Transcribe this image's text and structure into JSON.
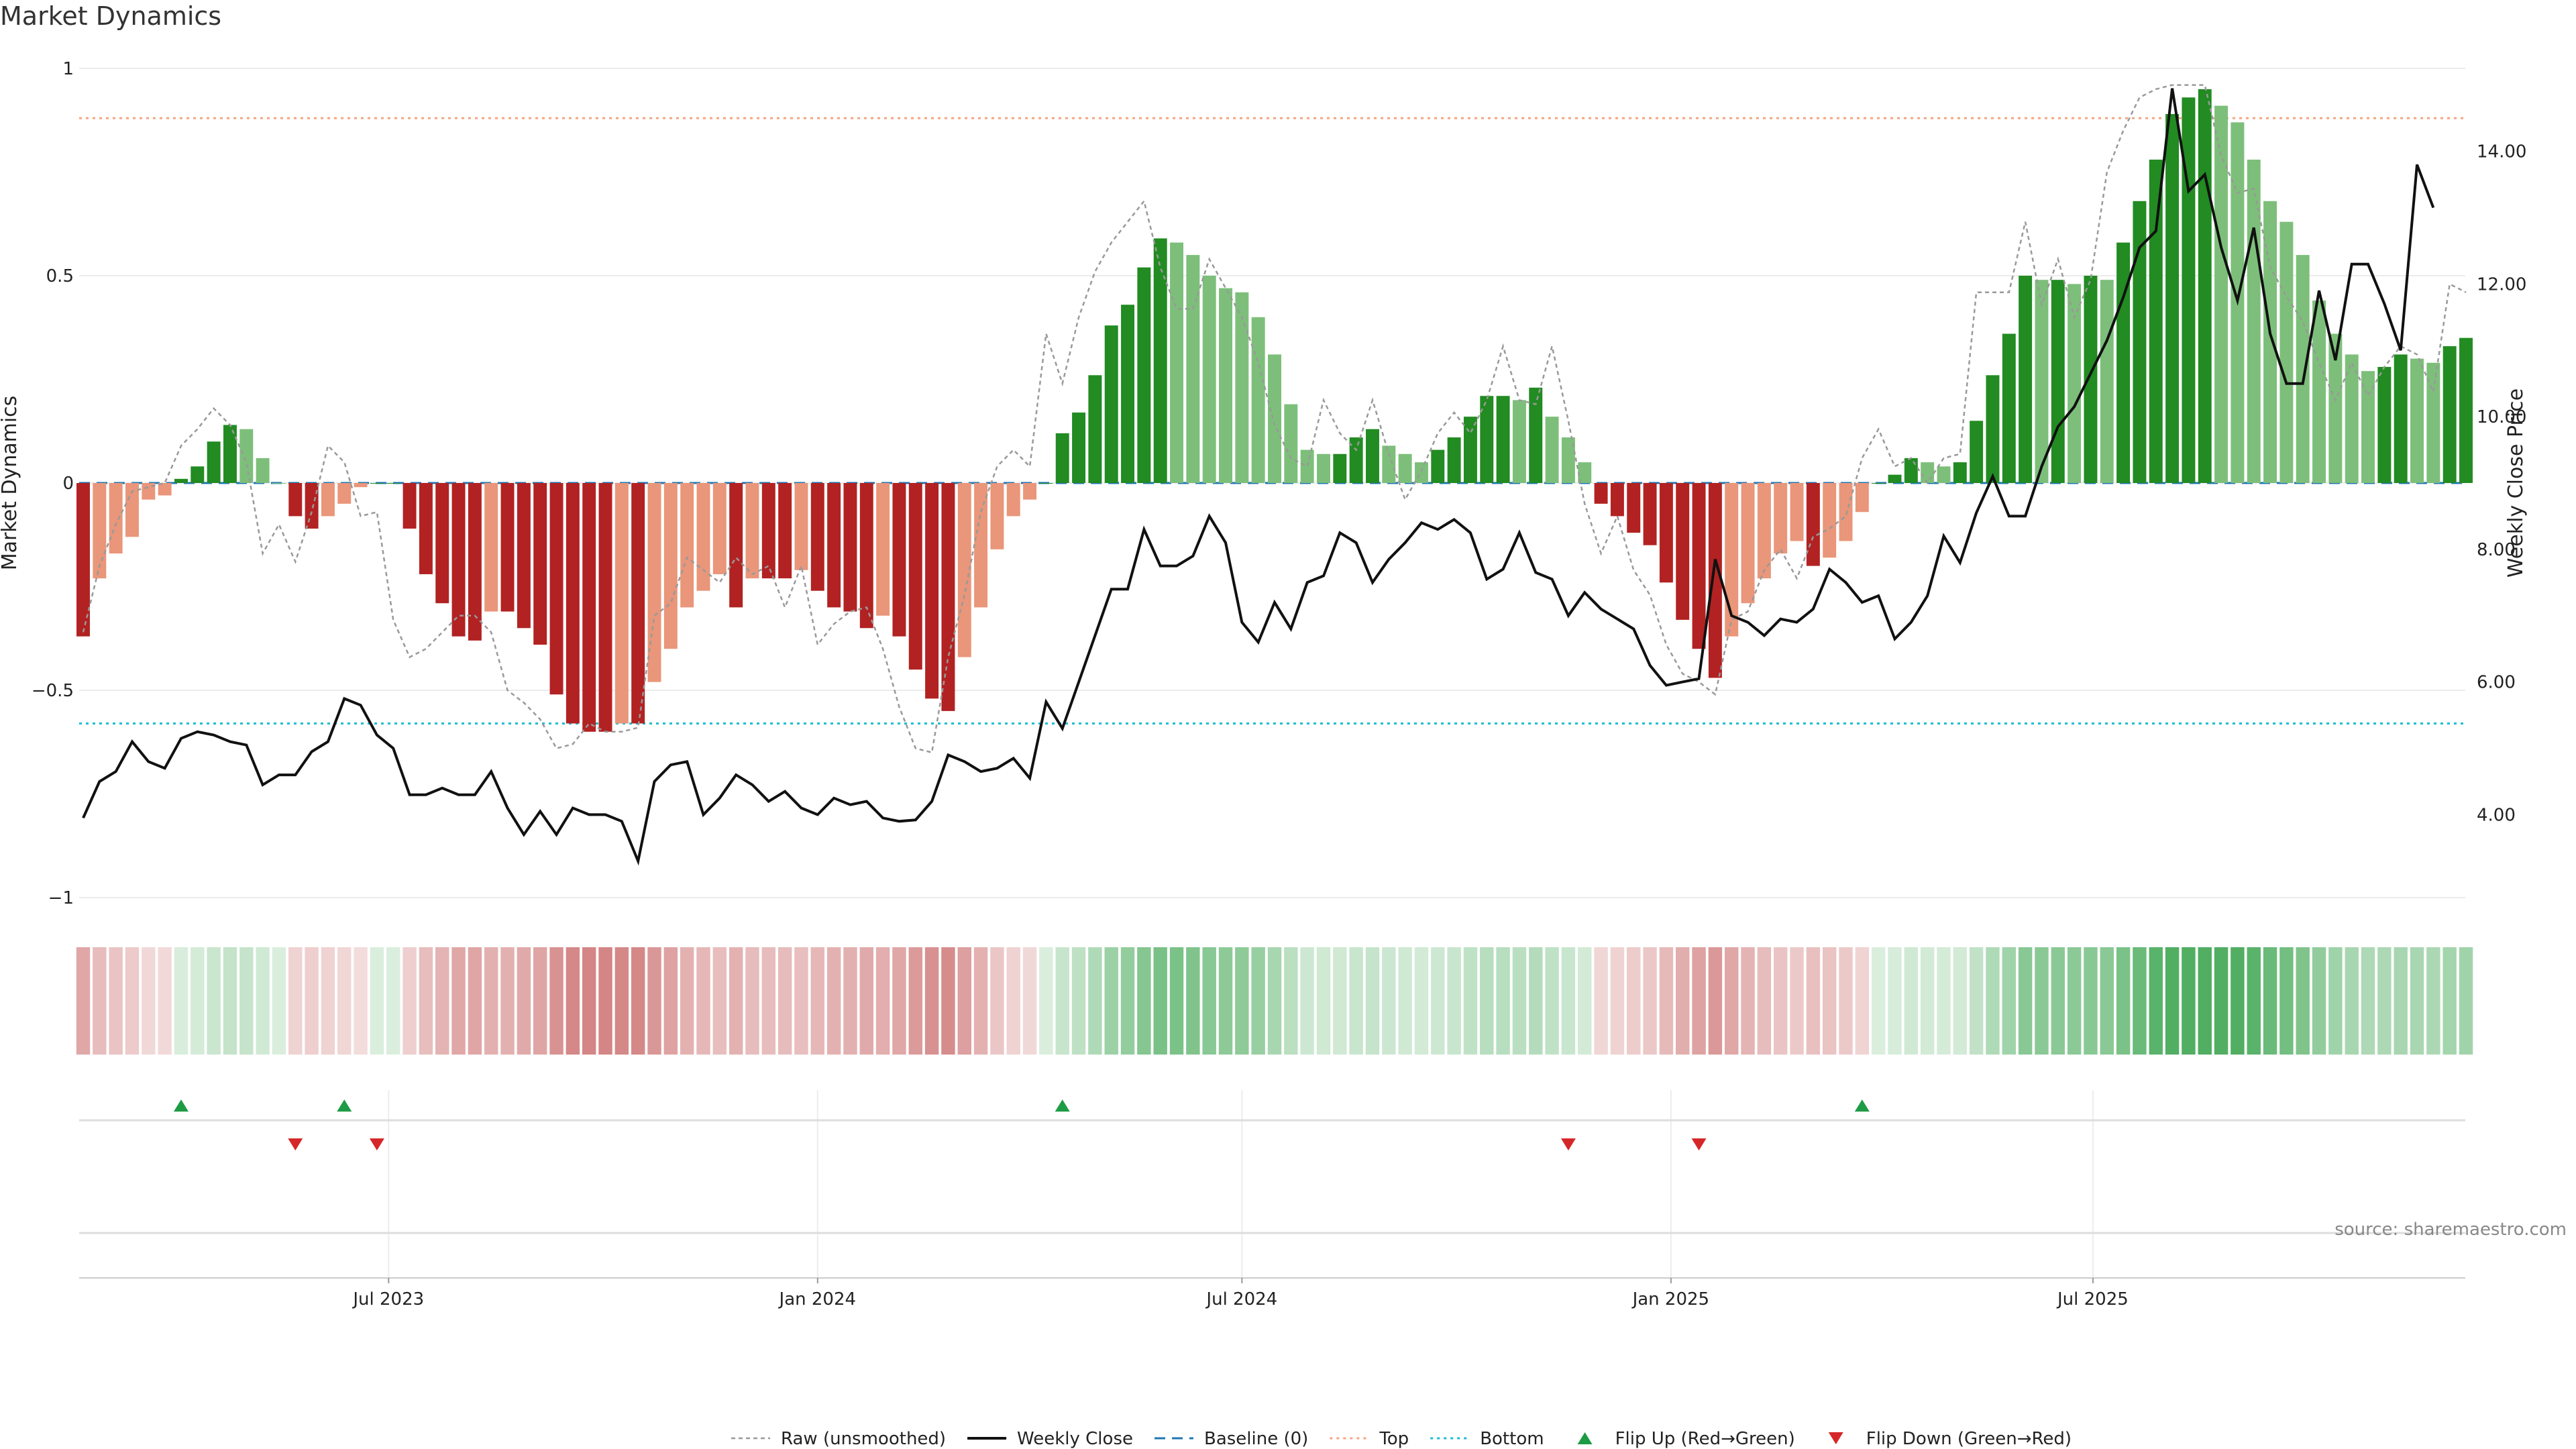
{
  "page": {
    "title": "Market Dynamics",
    "source": "source: sharemaestro.com"
  },
  "colors": {
    "strong_green": "#228b22",
    "light_green": "#7dbf7a",
    "strong_red": "#b22222",
    "light_red": "#e9967a",
    "raw_line": "#999999",
    "close_line": "#111111",
    "baseline": "#1f77b4",
    "top_line": "#f4a582",
    "bottom_line": "#17becf",
    "flip_up": "#1e9b45",
    "flip_down": "#d62728"
  },
  "chart_data": {
    "type": "bar",
    "title": "Market Dynamics",
    "ylabel": "Market Dynamics",
    "y2label": "Weekly Close Price",
    "start_date": "2023-02-20",
    "ylim": [
      -1,
      1
    ],
    "y2lim": [
      2.75,
      15.25
    ],
    "yticks": [
      -1,
      -0.5,
      0,
      0.5,
      1
    ],
    "y2ticks": [
      "4.00",
      "6.00",
      "8.00",
      "10.00",
      "12.00",
      "14.00"
    ],
    "xticks": [
      {
        "date": "2023-07-01",
        "label": "Jul 2023"
      },
      {
        "date": "2024-01-01",
        "label": "Jan 2024"
      },
      {
        "date": "2024-07-01",
        "label": "Jul 2024"
      },
      {
        "date": "2025-01-01",
        "label": "Jan 2025"
      },
      {
        "date": "2025-07-01",
        "label": "Jul 2025"
      }
    ],
    "top_level": 0.88,
    "bottom_level": -0.58,
    "grid": true,
    "legend_position": "bottom-center",
    "legend": [
      {
        "key": "raw",
        "label": "Raw (unsmoothed)"
      },
      {
        "key": "close",
        "label": "Weekly Close"
      },
      {
        "key": "baseline",
        "label": "Baseline (0)"
      },
      {
        "key": "top",
        "label": "Top"
      },
      {
        "key": "bottom",
        "label": "Bottom"
      },
      {
        "key": "flipup",
        "label": "Flip Up (Red→Green)"
      },
      {
        "key": "flipdown",
        "label": "Flip Down (Green→Red)"
      }
    ],
    "series": [
      {
        "name": "Market Dynamics",
        "values": [
          -0.37,
          -0.23,
          -0.17,
          -0.13,
          -0.04,
          -0.03,
          0.01,
          0.04,
          0.1,
          0.14,
          0.13,
          0.06,
          0.0,
          -0.08,
          -0.11,
          -0.08,
          -0.05,
          -0.01,
          0.0,
          0.0,
          -0.11,
          -0.22,
          -0.29,
          -0.37,
          -0.38,
          -0.31,
          -0.31,
          -0.35,
          -0.39,
          -0.51,
          -0.58,
          -0.6,
          -0.6,
          -0.58,
          -0.58,
          -0.48,
          -0.4,
          -0.3,
          -0.26,
          -0.22,
          -0.3,
          -0.23,
          -0.23,
          -0.23,
          -0.21,
          -0.26,
          -0.3,
          -0.31,
          -0.35,
          -0.32,
          -0.37,
          -0.45,
          -0.52,
          -0.55,
          -0.42,
          -0.3,
          -0.16,
          -0.08,
          -0.04,
          0.0,
          0.12,
          0.17,
          0.26,
          0.38,
          0.43,
          0.52,
          0.59,
          0.58,
          0.55,
          0.5,
          0.47,
          0.46,
          0.4,
          0.31,
          0.19,
          0.08,
          0.07,
          0.07,
          0.11,
          0.13,
          0.09,
          0.07,
          0.05,
          0.08,
          0.11,
          0.16,
          0.21,
          0.21,
          0.2,
          0.23,
          0.16,
          0.11,
          0.05,
          -0.05,
          -0.08,
          -0.12,
          -0.15,
          -0.24,
          -0.33,
          -0.4,
          -0.47,
          -0.37,
          -0.29,
          -0.23,
          -0.17,
          -0.14,
          -0.2,
          -0.18,
          -0.14,
          -0.07,
          0.0,
          0.02,
          0.06,
          0.05,
          0.04,
          0.05,
          0.15,
          0.26,
          0.36,
          0.5,
          0.49,
          0.49,
          0.48,
          0.5,
          0.49,
          0.58,
          0.68,
          0.78,
          0.89,
          0.93,
          0.95,
          0.91,
          0.87,
          0.78,
          0.68,
          0.63,
          0.55,
          0.44,
          0.36,
          0.31,
          0.27,
          0.28,
          0.31,
          0.3,
          0.29,
          0.33,
          0.35
        ]
      },
      {
        "name": "Raw (unsmoothed)",
        "values": [
          -0.36,
          -0.2,
          -0.1,
          -0.02,
          -0.01,
          0.0,
          0.09,
          0.13,
          0.18,
          0.14,
          0.05,
          -0.17,
          -0.1,
          -0.19,
          -0.07,
          0.09,
          0.05,
          -0.08,
          -0.07,
          -0.33,
          -0.42,
          -0.4,
          -0.36,
          -0.32,
          -0.32,
          -0.36,
          -0.5,
          -0.53,
          -0.57,
          -0.64,
          -0.63,
          -0.58,
          -0.6,
          -0.6,
          -0.59,
          -0.32,
          -0.29,
          -0.18,
          -0.21,
          -0.24,
          -0.18,
          -0.22,
          -0.2,
          -0.3,
          -0.2,
          -0.39,
          -0.34,
          -0.31,
          -0.3,
          -0.4,
          -0.54,
          -0.64,
          -0.65,
          -0.42,
          -0.27,
          -0.07,
          0.04,
          0.08,
          0.04,
          0.36,
          0.24,
          0.4,
          0.51,
          0.58,
          0.63,
          0.68,
          0.52,
          0.42,
          0.42,
          0.54,
          0.47,
          0.4,
          0.29,
          0.14,
          0.06,
          0.04,
          0.2,
          0.12,
          0.08,
          0.2,
          0.07,
          -0.04,
          0.03,
          0.12,
          0.17,
          0.12,
          0.2,
          0.33,
          0.2,
          0.19,
          0.33,
          0.15,
          -0.05,
          -0.17,
          -0.08,
          -0.21,
          -0.27,
          -0.39,
          -0.46,
          -0.48,
          -0.51,
          -0.33,
          -0.31,
          -0.21,
          -0.16,
          -0.23,
          -0.13,
          -0.11,
          -0.08,
          0.06,
          0.13,
          0.04,
          0.06,
          0.0,
          0.06,
          0.07,
          0.46,
          0.46,
          0.46,
          0.63,
          0.43,
          0.54,
          0.4,
          0.49,
          0.75,
          0.85,
          0.93,
          0.95,
          0.96,
          0.96,
          0.96,
          0.79,
          0.7,
          0.71,
          0.52,
          0.45,
          0.39,
          0.29,
          0.2,
          0.29,
          0.21,
          0.28,
          0.33,
          0.31,
          0.22,
          0.48,
          0.46
        ]
      },
      {
        "name": "Weekly Close",
        "values": [
          3.95,
          4.5,
          4.65,
          5.1,
          4.8,
          4.7,
          5.15,
          5.25,
          5.2,
          5.1,
          5.05,
          4.45,
          4.6,
          4.6,
          4.95,
          5.1,
          5.75,
          5.65,
          5.2,
          5.0,
          4.3,
          4.3,
          4.4,
          4.3,
          4.3,
          4.65,
          4.1,
          3.7,
          4.05,
          3.7,
          4.1,
          4.0,
          4.0,
          3.9,
          3.3,
          4.5,
          4.75,
          4.8,
          4.0,
          4.25,
          4.6,
          4.45,
          4.2,
          4.35,
          4.1,
          4.0,
          4.25,
          4.15,
          4.2,
          3.95,
          3.9,
          3.92,
          4.2,
          4.9,
          4.8,
          4.65,
          4.7,
          4.85,
          4.55,
          5.7,
          5.3,
          6.0,
          6.7,
          7.4,
          7.4,
          8.3,
          7.75,
          7.75,
          7.9,
          8.5,
          8.1,
          6.9,
          6.6,
          7.2,
          6.8,
          7.5,
          7.6,
          8.25,
          8.1,
          7.5,
          7.85,
          8.1,
          8.4,
          8.3,
          8.45,
          8.25,
          7.55,
          7.7,
          8.25,
          7.65,
          7.55,
          7.0,
          7.35,
          7.1,
          6.95,
          6.8,
          6.25,
          5.95,
          6.0,
          6.05,
          7.85,
          7.0,
          6.9,
          6.7,
          6.95,
          6.9,
          7.1,
          7.7,
          7.5,
          7.2,
          7.3,
          6.65,
          6.9,
          7.3,
          8.2,
          7.8,
          8.55,
          9.1,
          8.5,
          8.5,
          9.25,
          9.85,
          10.15,
          10.65,
          11.15,
          11.8,
          12.55,
          12.8,
          14.95,
          13.4,
          13.65,
          12.55,
          11.75,
          12.85,
          11.25,
          10.5,
          10.5,
          11.9,
          10.85,
          12.3,
          12.3,
          11.7,
          11.0,
          13.8,
          13.15
        ]
      },
      {
        "name": "Flip Up (Red→Green)",
        "dates": [
          "2023-04-03",
          "2023-06-12",
          "2024-04-15",
          "2025-03-24"
        ]
      },
      {
        "name": "Flip Down (Green→Red)",
        "dates": [
          "2023-05-22",
          "2023-06-26",
          "2024-11-18",
          "2025-01-13"
        ]
      }
    ]
  }
}
